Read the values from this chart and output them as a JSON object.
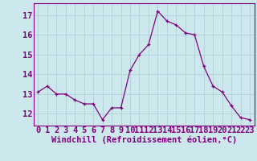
{
  "x": [
    0,
    1,
    2,
    3,
    4,
    5,
    6,
    7,
    8,
    9,
    10,
    11,
    12,
    13,
    14,
    15,
    16,
    17,
    18,
    19,
    20,
    21,
    22,
    23
  ],
  "y": [
    13.1,
    13.4,
    13.0,
    13.0,
    12.7,
    12.5,
    12.5,
    11.7,
    12.3,
    12.3,
    14.2,
    15.0,
    15.5,
    17.2,
    16.7,
    16.5,
    16.1,
    16.0,
    14.4,
    13.4,
    13.1,
    12.4,
    11.8,
    11.7
  ],
  "line_color": "#800080",
  "marker": "+",
  "bg_color": "#cce8ec",
  "grid_color": "#b0d0d8",
  "xlabel": "Windchill (Refroidissement éolien,°C)",
  "ylabel_ticks": [
    12,
    13,
    14,
    15,
    16,
    17
  ],
  "xlim": [
    -0.5,
    23.5
  ],
  "ylim": [
    11.4,
    17.6
  ],
  "xlabel_fontsize": 7.5,
  "tick_fontsize": 7.5,
  "tick_color": "#800080",
  "spine_color": "#800080"
}
